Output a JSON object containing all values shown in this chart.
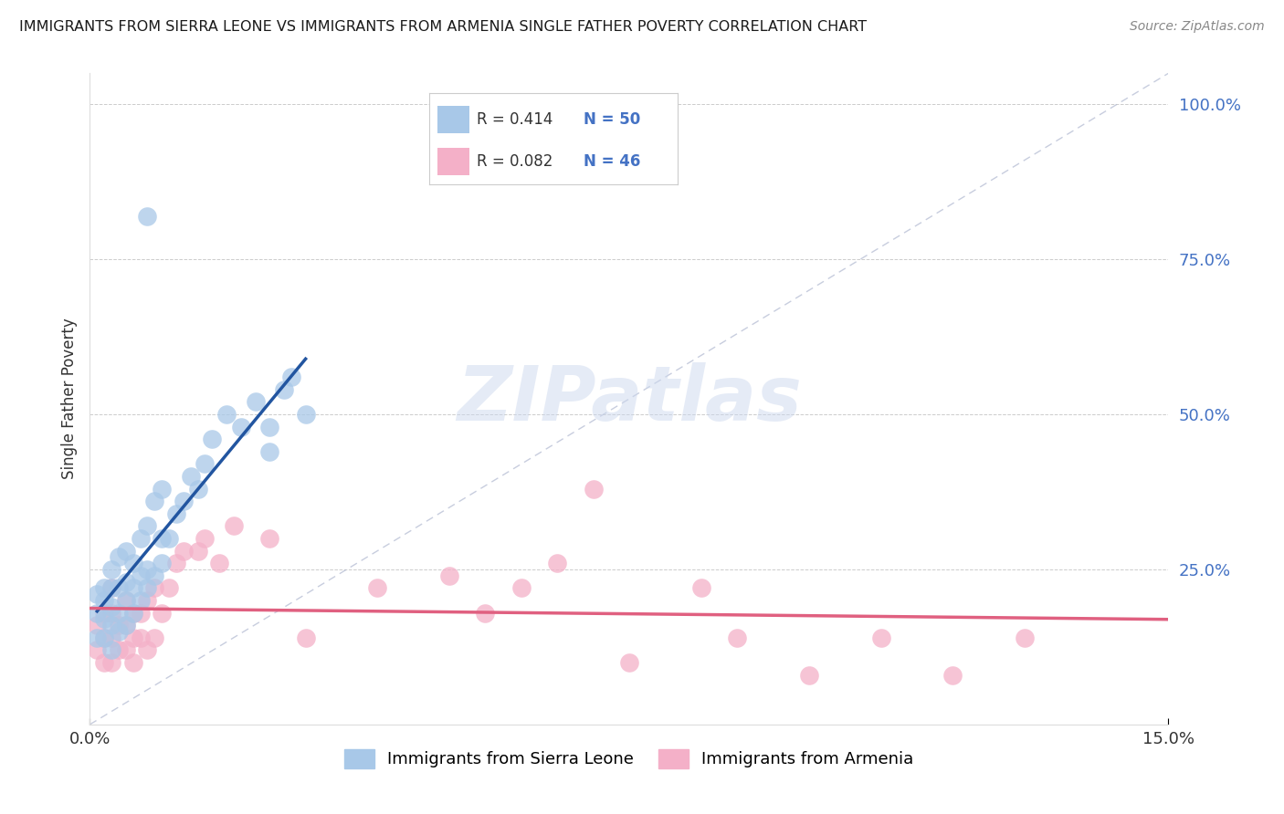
{
  "title": "IMMIGRANTS FROM SIERRA LEONE VS IMMIGRANTS FROM ARMENIA SINGLE FATHER POVERTY CORRELATION CHART",
  "source": "Source: ZipAtlas.com",
  "ylabel": "Single Father Poverty",
  "sierra_leone_R": "0.414",
  "sierra_leone_N": "50",
  "armenia_R": "0.082",
  "armenia_N": "46",
  "sierra_leone_color": "#a8c8e8",
  "armenia_color": "#f4b0c8",
  "sierra_leone_line_color": "#2255a0",
  "armenia_line_color": "#e06080",
  "diagonal_color": "#b0b8d0",
  "watermark_color": "#ccd8ee",
  "background_color": "#ffffff",
  "grid_color": "#cccccc",
  "title_color": "#1a1a1a",
  "source_color": "#888888",
  "ylabel_color": "#333333",
  "tick_color": "#4472c4",
  "xtick_color": "#333333",
  "legend_R_color": "#333333",
  "legend_N_color": "#4472c4",
  "sierra_leone_x": [
    0.001,
    0.001,
    0.001,
    0.002,
    0.002,
    0.002,
    0.002,
    0.003,
    0.003,
    0.003,
    0.003,
    0.003,
    0.004,
    0.004,
    0.004,
    0.004,
    0.005,
    0.005,
    0.005,
    0.005,
    0.006,
    0.006,
    0.006,
    0.007,
    0.007,
    0.007,
    0.008,
    0.008,
    0.008,
    0.009,
    0.009,
    0.01,
    0.01,
    0.01,
    0.011,
    0.012,
    0.013,
    0.014,
    0.015,
    0.016,
    0.017,
    0.019,
    0.021,
    0.023,
    0.025,
    0.025,
    0.027,
    0.028,
    0.03,
    0.008
  ],
  "sierra_leone_y": [
    0.14,
    0.18,
    0.21,
    0.14,
    0.17,
    0.2,
    0.22,
    0.12,
    0.16,
    0.19,
    0.22,
    0.25,
    0.15,
    0.18,
    0.22,
    0.27,
    0.16,
    0.2,
    0.23,
    0.28,
    0.18,
    0.22,
    0.26,
    0.2,
    0.24,
    0.3,
    0.22,
    0.25,
    0.32,
    0.24,
    0.36,
    0.26,
    0.3,
    0.38,
    0.3,
    0.34,
    0.36,
    0.4,
    0.38,
    0.42,
    0.46,
    0.5,
    0.48,
    0.52,
    0.44,
    0.48,
    0.54,
    0.56,
    0.5,
    0.82
  ],
  "armenia_x": [
    0.001,
    0.001,
    0.002,
    0.002,
    0.002,
    0.003,
    0.003,
    0.003,
    0.003,
    0.004,
    0.004,
    0.005,
    0.005,
    0.005,
    0.006,
    0.006,
    0.006,
    0.007,
    0.007,
    0.008,
    0.008,
    0.009,
    0.009,
    0.01,
    0.011,
    0.012,
    0.013,
    0.015,
    0.016,
    0.018,
    0.02,
    0.025,
    0.03,
    0.04,
    0.05,
    0.055,
    0.06,
    0.065,
    0.07,
    0.075,
    0.085,
    0.09,
    0.1,
    0.11,
    0.12,
    0.13
  ],
  "armenia_y": [
    0.12,
    0.16,
    0.1,
    0.14,
    0.18,
    0.1,
    0.14,
    0.18,
    0.22,
    0.12,
    0.16,
    0.12,
    0.16,
    0.2,
    0.1,
    0.14,
    0.18,
    0.14,
    0.18,
    0.12,
    0.2,
    0.14,
    0.22,
    0.18,
    0.22,
    0.26,
    0.28,
    0.28,
    0.3,
    0.26,
    0.32,
    0.3,
    0.14,
    0.22,
    0.24,
    0.18,
    0.22,
    0.26,
    0.38,
    0.1,
    0.22,
    0.14,
    0.08,
    0.14,
    0.08,
    0.14
  ],
  "xmin": 0.0,
  "xmax": 0.15,
  "ymin": 0.0,
  "ymax": 1.05,
  "ytick_vals": [
    0.0,
    0.25,
    0.5,
    0.75,
    1.0
  ],
  "ytick_labels": [
    "",
    "25.0%",
    "50.0%",
    "75.0%",
    "100.0%"
  ],
  "xtick_vals": [
    0.0,
    0.15
  ],
  "xtick_labels": [
    "0.0%",
    "15.0%"
  ]
}
